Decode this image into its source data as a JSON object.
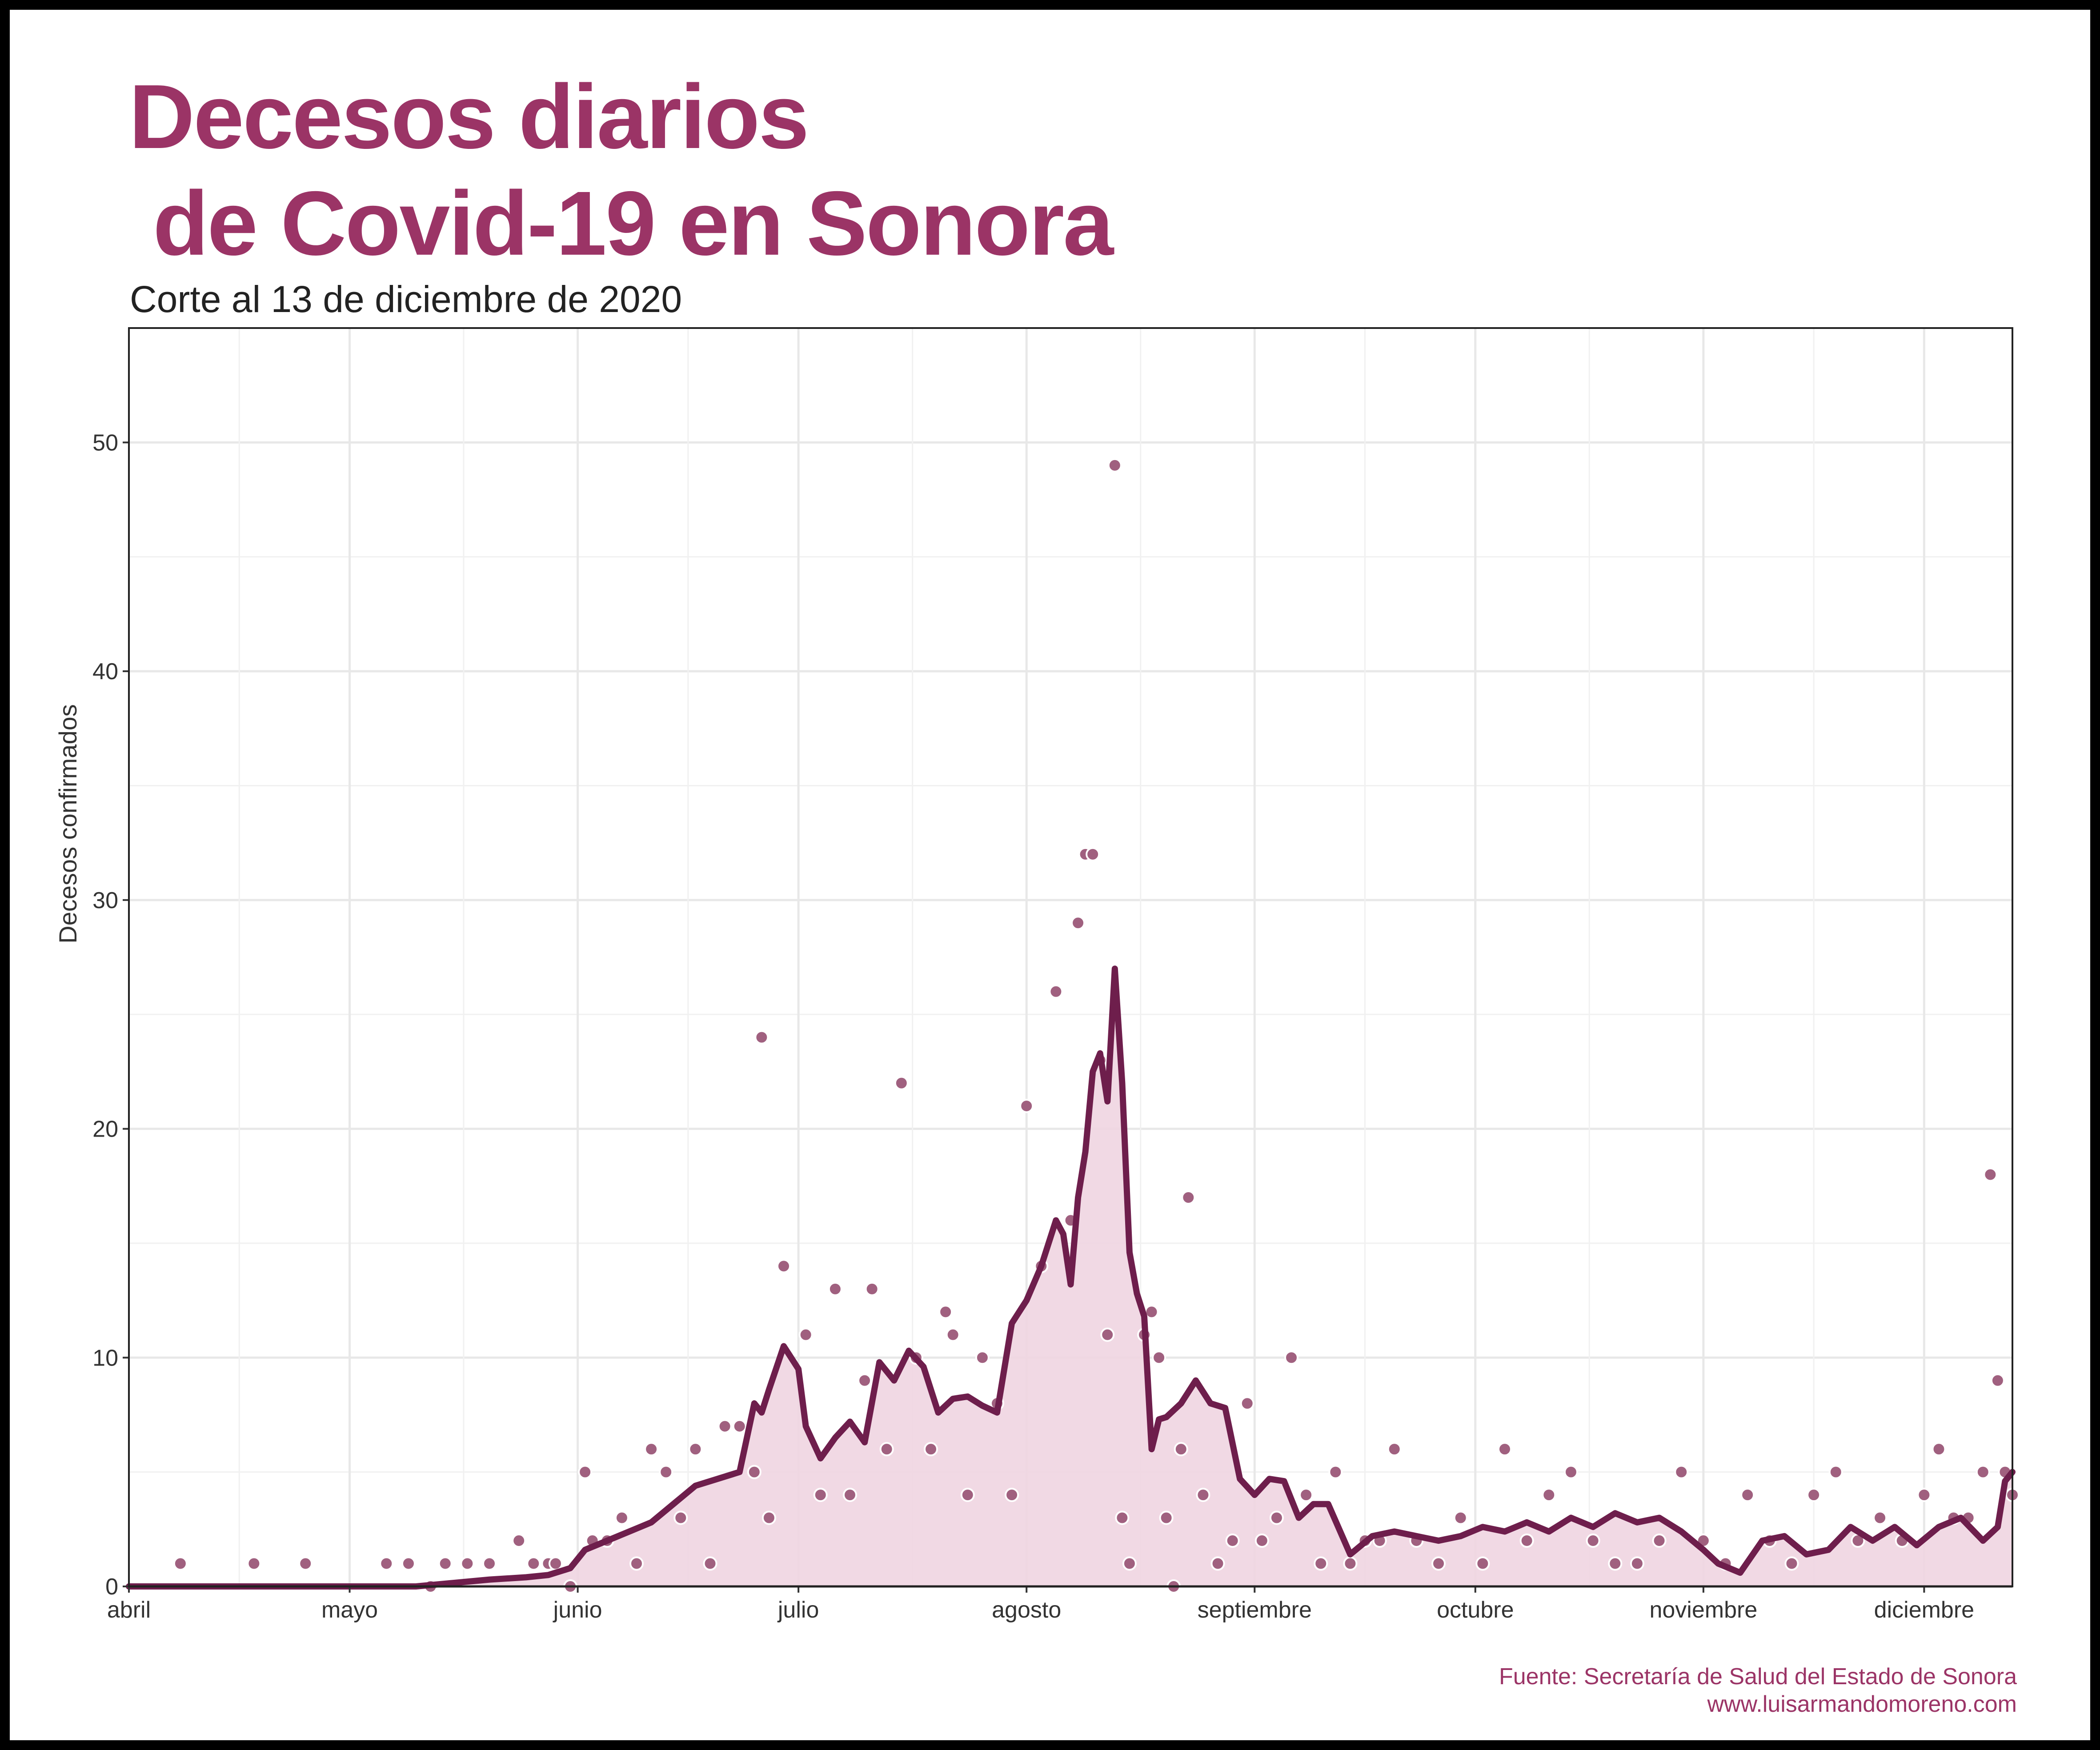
{
  "title_lines": [
    "Decesos diarios",
    " de Covid-19 en Sonora"
  ],
  "subtitle": "Corte al 13 de diciembre de 2020",
  "caption_lines": [
    "Fuente: Secretaría de Salud del Estado de Sonora",
    "www.luisarmandomoreno.com"
  ],
  "colors": {
    "accent": "#9B3466",
    "line": "#6E1E4C",
    "fill": "#F0D5E1",
    "points": "#A0607F",
    "grid": "#E8E8E8"
  },
  "chart_data": {
    "type": "line",
    "title": "Decesos diarios de Covid-19 en Sonora",
    "subtitle": "Corte al 13 de diciembre de 2020",
    "ylabel": "Decesos confirmados",
    "xlabel": "",
    "ylim": [
      0,
      55
    ],
    "xlim": [
      "2020-04-01",
      "2020-12-13"
    ],
    "y_ticks": [
      0,
      10,
      20,
      30,
      40,
      50
    ],
    "x_ticks": [
      {
        "date": "2020-04-01",
        "label": "abril"
      },
      {
        "date": "2020-05-01",
        "label": "mayo"
      },
      {
        "date": "2020-06-01",
        "label": "junio"
      },
      {
        "date": "2020-07-01",
        "label": "julio"
      },
      {
        "date": "2020-08-01",
        "label": "agosto"
      },
      {
        "date": "2020-09-01",
        "label": "septiembre"
      },
      {
        "date": "2020-10-01",
        "label": "octubre"
      },
      {
        "date": "2020-11-01",
        "label": "noviembre"
      },
      {
        "date": "2020-12-01",
        "label": "diciembre"
      }
    ],
    "grid": true,
    "series": [
      {
        "name": "",
        "kind": "points",
        "dates": [
          "2020-04-08",
          "2020-04-18",
          "2020-04-25",
          "2020-05-06",
          "2020-05-09",
          "2020-05-12",
          "2020-05-14",
          "2020-05-17",
          "2020-05-20",
          "2020-05-24",
          "2020-05-26",
          "2020-05-28",
          "2020-05-29",
          "2020-05-31",
          "2020-06-02",
          "2020-06-03",
          "2020-06-05",
          "2020-06-07",
          "2020-06-09",
          "2020-06-11",
          "2020-06-13",
          "2020-06-15",
          "2020-06-17",
          "2020-06-19",
          "2020-06-21",
          "2020-06-23",
          "2020-06-25",
          "2020-06-26",
          "2020-06-27",
          "2020-06-29",
          "2020-07-02",
          "2020-07-04",
          "2020-07-06",
          "2020-07-08",
          "2020-07-10",
          "2020-07-11",
          "2020-07-13",
          "2020-07-15",
          "2020-07-17",
          "2020-07-19",
          "2020-07-21",
          "2020-07-22",
          "2020-07-24",
          "2020-07-26",
          "2020-07-28",
          "2020-07-30",
          "2020-08-01",
          "2020-08-03",
          "2020-08-05",
          "2020-08-07",
          "2020-08-08",
          "2020-08-09",
          "2020-08-10",
          "2020-08-11",
          "2020-08-12",
          "2020-08-13",
          "2020-08-14",
          "2020-08-15",
          "2020-08-17",
          "2020-08-18",
          "2020-08-19",
          "2020-08-20",
          "2020-08-21",
          "2020-08-22",
          "2020-08-23",
          "2020-08-25",
          "2020-08-27",
          "2020-08-29",
          "2020-08-31",
          "2020-09-02",
          "2020-09-04",
          "2020-09-06",
          "2020-09-08",
          "2020-09-10",
          "2020-09-12",
          "2020-09-14",
          "2020-09-16",
          "2020-09-18",
          "2020-09-20",
          "2020-09-23",
          "2020-09-26",
          "2020-09-29",
          "2020-10-02",
          "2020-10-05",
          "2020-10-08",
          "2020-10-11",
          "2020-10-14",
          "2020-10-17",
          "2020-10-20",
          "2020-10-23",
          "2020-10-26",
          "2020-10-29",
          "2020-11-01",
          "2020-11-04",
          "2020-11-07",
          "2020-11-10",
          "2020-11-13",
          "2020-11-16",
          "2020-11-19",
          "2020-11-22",
          "2020-11-25",
          "2020-11-28",
          "2020-12-01",
          "2020-12-03",
          "2020-12-05",
          "2020-12-07",
          "2020-12-09",
          "2020-12-10",
          "2020-12-11",
          "2020-12-12",
          "2020-12-13"
        ],
        "values": [
          1,
          1,
          1,
          1,
          1,
          0,
          1,
          1,
          1,
          2,
          1,
          1,
          1,
          0,
          5,
          2,
          2,
          3,
          1,
          6,
          5,
          3,
          6,
          1,
          7,
          7,
          5,
          24,
          3,
          14,
          11,
          4,
          13,
          4,
          9,
          13,
          6,
          22,
          10,
          6,
          12,
          11,
          4,
          10,
          8,
          4,
          21,
          14,
          26,
          16,
          29,
          32,
          32,
          23,
          11,
          49,
          3,
          1,
          11,
          12,
          10,
          3,
          0,
          6,
          17,
          4,
          1,
          2,
          8,
          2,
          3,
          10,
          4,
          1,
          5,
          1,
          2,
          2,
          6,
          2,
          1,
          3,
          1,
          6,
          2,
          4,
          5,
          2,
          1,
          1,
          2,
          5,
          2,
          1,
          4,
          2,
          1,
          4,
          5,
          2,
          3,
          2,
          4,
          6,
          3,
          3,
          5,
          18,
          9,
          5,
          4
        ]
      },
      {
        "name": "",
        "kind": "line",
        "dates": [
          "2020-04-01",
          "2020-04-20",
          "2020-05-10",
          "2020-05-20",
          "2020-05-25",
          "2020-05-28",
          "2020-05-31",
          "2020-06-02",
          "2020-06-05",
          "2020-06-08",
          "2020-06-11",
          "2020-06-14",
          "2020-06-17",
          "2020-06-20",
          "2020-06-23",
          "2020-06-25",
          "2020-06-26",
          "2020-06-27",
          "2020-06-29",
          "2020-07-01",
          "2020-07-02",
          "2020-07-04",
          "2020-07-06",
          "2020-07-08",
          "2020-07-10",
          "2020-07-12",
          "2020-07-14",
          "2020-07-16",
          "2020-07-18",
          "2020-07-20",
          "2020-07-22",
          "2020-07-24",
          "2020-07-26",
          "2020-07-28",
          "2020-07-30",
          "2020-08-01",
          "2020-08-03",
          "2020-08-05",
          "2020-08-06",
          "2020-08-07",
          "2020-08-08",
          "2020-08-09",
          "2020-08-10",
          "2020-08-11",
          "2020-08-12",
          "2020-08-13",
          "2020-08-14",
          "2020-08-15",
          "2020-08-16",
          "2020-08-17",
          "2020-08-18",
          "2020-08-19",
          "2020-08-20",
          "2020-08-22",
          "2020-08-24",
          "2020-08-26",
          "2020-08-28",
          "2020-08-30",
          "2020-09-01",
          "2020-09-03",
          "2020-09-05",
          "2020-09-07",
          "2020-09-09",
          "2020-09-11",
          "2020-09-14",
          "2020-09-17",
          "2020-09-20",
          "2020-09-23",
          "2020-09-26",
          "2020-09-29",
          "2020-10-02",
          "2020-10-05",
          "2020-10-08",
          "2020-10-11",
          "2020-10-14",
          "2020-10-17",
          "2020-10-20",
          "2020-10-23",
          "2020-10-26",
          "2020-10-29",
          "2020-11-01",
          "2020-11-03",
          "2020-11-06",
          "2020-11-09",
          "2020-11-12",
          "2020-11-15",
          "2020-11-18",
          "2020-11-21",
          "2020-11-24",
          "2020-11-27",
          "2020-11-30",
          "2020-12-03",
          "2020-12-06",
          "2020-12-09",
          "2020-12-11",
          "2020-12-12",
          "2020-12-13"
        ],
        "values": [
          0,
          0,
          0,
          0.3,
          0.4,
          0.5,
          0.8,
          1.6,
          2.0,
          2.4,
          2.8,
          3.6,
          4.4,
          4.7,
          5.0,
          8.0,
          7.6,
          8.6,
          10.5,
          9.5,
          7.0,
          5.6,
          6.5,
          7.2,
          6.3,
          9.8,
          9.0,
          10.3,
          9.6,
          7.6,
          8.2,
          8.3,
          7.9,
          7.6,
          11.5,
          12.5,
          14.0,
          16.0,
          15.4,
          13.2,
          17.0,
          19.0,
          22.5,
          23.3,
          21.2,
          27.0,
          22.0,
          14.6,
          12.8,
          11.8,
          6.0,
          7.3,
          7.4,
          8.0,
          9.0,
          8.0,
          7.8,
          4.7,
          4.0,
          4.7,
          4.6,
          3.0,
          3.6,
          3.6,
          1.4,
          2.2,
          2.4,
          2.2,
          2.0,
          2.2,
          2.6,
          2.4,
          2.8,
          2.4,
          3.0,
          2.6,
          3.2,
          2.8,
          3.0,
          2.4,
          1.6,
          1.0,
          0.6,
          2.0,
          2.2,
          1.4,
          1.6,
          2.6,
          2.0,
          2.6,
          1.8,
          2.6,
          3.0,
          2.0,
          2.6,
          4.6,
          5.0
        ]
      }
    ]
  }
}
